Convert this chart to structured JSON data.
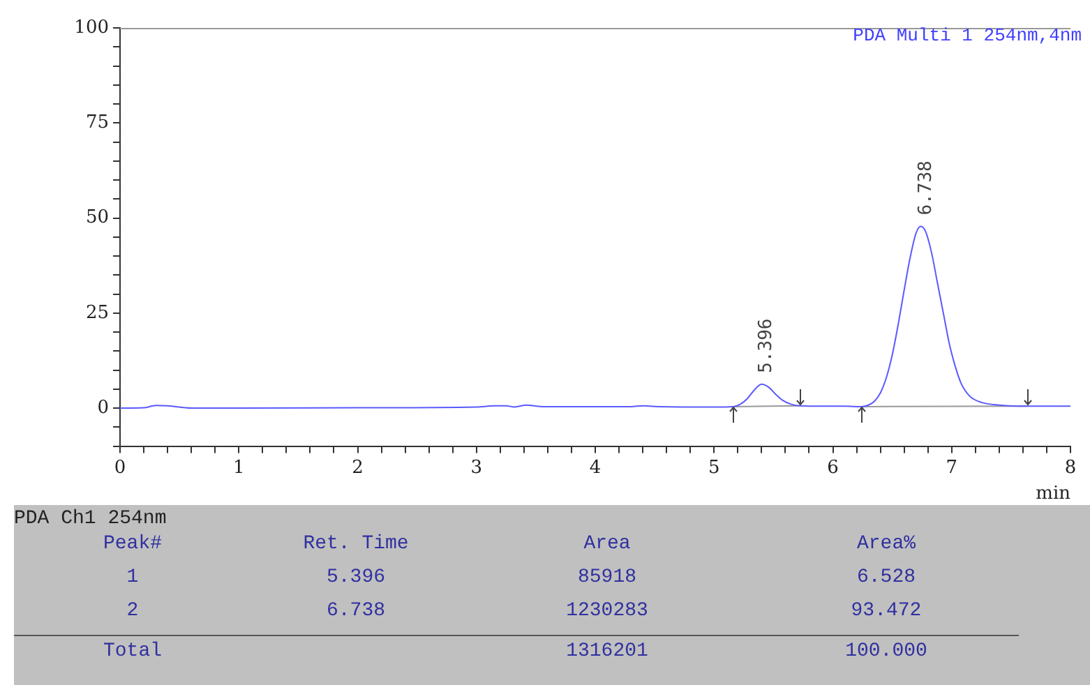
{
  "chart_data": {
    "type": "line",
    "xlabel": "min",
    "marker": "none",
    "line_style": "solid",
    "grid": false,
    "legend": false,
    "xlim": [
      0,
      8
    ],
    "ylim": [
      -10,
      100
    ],
    "xticks": [
      0,
      {
        "value": 0.2,
        "label": null
      },
      {
        "value": 0.4,
        "label": null
      },
      {
        "value": 0.6,
        "label": null
      },
      {
        "value": 0.8,
        "label": null
      },
      1,
      {
        "value": 1.2,
        "label": null
      },
      {
        "value": 1.4,
        "label": null
      },
      {
        "value": 1.6,
        "label": null
      },
      {
        "value": 1.8,
        "label": null
      },
      2,
      {
        "value": 2.2,
        "label": null
      },
      {
        "value": 2.4,
        "label": null
      },
      {
        "value": 2.6,
        "label": null
      },
      {
        "value": 2.8,
        "label": null
      },
      3,
      {
        "value": 3.2,
        "label": null
      },
      {
        "value": 3.4,
        "label": null
      },
      {
        "value": 3.6,
        "label": null
      },
      {
        "value": 3.8,
        "label": null
      },
      4,
      {
        "value": 4.2,
        "label": null
      },
      {
        "value": 4.4,
        "label": null
      },
      {
        "value": 4.6,
        "label": null
      },
      {
        "value": 4.8,
        "label": null
      },
      5,
      {
        "value": 5.2,
        "label": null
      },
      {
        "value": 5.4,
        "label": null
      },
      {
        "value": 5.6,
        "label": null
      },
      {
        "value": 5.8,
        "label": null
      },
      6,
      {
        "value": 6.2,
        "label": null
      },
      {
        "value": 6.4,
        "label": null
      },
      {
        "value": 6.6,
        "label": null
      },
      {
        "value": 6.8,
        "label": null
      },
      7,
      {
        "value": 7.2,
        "label": null
      },
      {
        "value": 7.4,
        "label": null
      },
      {
        "value": 7.6,
        "label": null
      },
      {
        "value": 7.8,
        "label": null
      },
      8
    ],
    "yticks": [
      {
        "value": -10,
        "label": null
      },
      {
        "value": -5,
        "label": null
      },
      0,
      {
        "value": 5,
        "label": null
      },
      {
        "value": 10,
        "label": null
      },
      {
        "value": 15,
        "label": null
      },
      {
        "value": 20,
        "label": null
      },
      25,
      {
        "value": 30,
        "label": null
      },
      {
        "value": 35,
        "label": null
      },
      {
        "value": 40,
        "label": null
      },
      {
        "value": 45,
        "label": null
      },
      50,
      {
        "value": 55,
        "label": null
      },
      {
        "value": 60,
        "label": null
      },
      {
        "value": 65,
        "label": null
      },
      {
        "value": 70,
        "label": null
      },
      75,
      {
        "value": 80,
        "label": null
      },
      {
        "value": 85,
        "label": null
      },
      {
        "value": 90,
        "label": null
      },
      {
        "value": 95,
        "label": null
      },
      100
    ],
    "series": [
      {
        "color": "#5a5aff",
        "x": [
          0,
          0.2,
          0.3,
          0.4,
          0.6,
          1,
          2,
          3,
          3.15,
          3.25,
          3.32,
          3.42,
          3.55,
          4.3,
          4.4,
          4.55,
          5,
          5.16,
          5.22,
          5.28,
          5.34,
          5.4,
          5.46,
          5.52,
          5.58,
          5.65,
          5.73,
          5.9,
          6.1,
          6.24,
          6.3,
          6.35,
          6.4,
          6.45,
          6.5,
          6.55,
          6.6,
          6.65,
          6.7,
          6.74,
          6.78,
          6.83,
          6.88,
          6.93,
          6.98,
          7.03,
          7.08,
          7.15,
          7.25,
          7.4,
          7.64,
          8
        ],
        "values": [
          0,
          0.1,
          0.7,
          0.6,
          0,
          0,
          0.1,
          0.3,
          0.6,
          0.6,
          0.3,
          0.8,
          0.4,
          0.4,
          0.6,
          0.4,
          0.3,
          0.4,
          1,
          2.5,
          4.8,
          6.3,
          5.5,
          3.6,
          2,
          1,
          0.6,
          0.5,
          0.5,
          0.4,
          0.8,
          1.8,
          4,
          8,
          14,
          22,
          31,
          39.5,
          46,
          47.8,
          46.5,
          41,
          33,
          25,
          17,
          11,
          6.5,
          3.2,
          1.5,
          0.8,
          0.5,
          0.5
        ]
      },
      {
        "color": "#999999",
        "x": [
          5.16,
          5.73
        ],
        "values": [
          0.4,
          0.6
        ]
      },
      {
        "color": "#999999",
        "x": [
          6.24,
          7.64
        ],
        "values": [
          0.4,
          0.5
        ]
      }
    ],
    "annotations": [
      {
        "text": "5.396",
        "x": 5.396,
        "y": 6.3
      },
      {
        "text": "6.738",
        "x": 6.738,
        "y": 47.8
      },
      "PDA Multi 1 254nm,4nm",
      "PDA Ch1 254nm",
      "Peak#",
      "Ret. Time",
      "Area",
      "Area%",
      "1",
      "5.396",
      "85918",
      "6.528",
      "2",
      "6.738",
      "1230283",
      "93.472",
      "Total",
      "1316201",
      "100.000"
    ]
  }
}
